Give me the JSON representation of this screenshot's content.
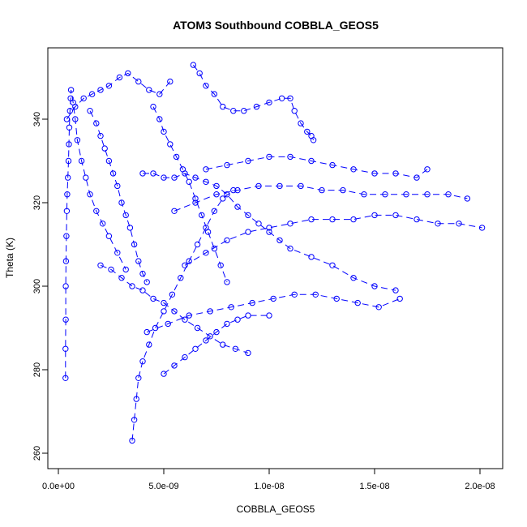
{
  "chart_data": {
    "type": "scatter",
    "title": "ATOM3 Southbound COBBLA_GEOS5",
    "xlabel": "COBBLA_GEOS5",
    "ylabel": "Theta (K)",
    "xlim": [
      -0.0,
      2.05e-08
    ],
    "ylim": [
      258,
      358
    ],
    "x_ticks": [
      0,
      5e-09,
      1e-08,
      1.5e-08,
      2e-08
    ],
    "x_tick_labels": [
      "0.0e+00",
      "5.0e-09",
      "1.0e-08",
      "1.5e-08",
      "2.0e-08"
    ],
    "y_ticks": [
      260,
      280,
      300,
      320,
      340
    ],
    "y_tick_labels": [
      "260",
      "280",
      "300",
      "320",
      "340"
    ],
    "marker": "open-circle",
    "line_style": "dashed",
    "grid": false,
    "legend": "none",
    "color": "#0000ff",
    "series": [
      {
        "points": [
          [
            3.4e-10,
            278
          ],
          [
            3.4e-10,
            285
          ],
          [
            3.5e-10,
            292
          ],
          [
            3.5e-10,
            300
          ],
          [
            3.6e-10,
            306
          ],
          [
            3.8e-10,
            312
          ],
          [
            4e-10,
            318
          ],
          [
            4.2e-10,
            322
          ],
          [
            4.5e-10,
            326
          ],
          [
            4.8e-10,
            330
          ],
          [
            5e-10,
            334
          ],
          [
            5.2e-10,
            338
          ],
          [
            5.5e-10,
            342
          ],
          [
            5.8e-10,
            345
          ],
          [
            6e-10,
            347
          ],
          [
            7e-10,
            344
          ],
          [
            8e-10,
            340
          ],
          [
            9e-10,
            335
          ],
          [
            1.1e-09,
            330
          ],
          [
            1.3e-09,
            326
          ],
          [
            1.5e-09,
            322
          ],
          [
            1.8e-09,
            318
          ],
          [
            2.1e-09,
            315
          ],
          [
            2.4e-09,
            312
          ],
          [
            2.8e-09,
            308
          ],
          [
            3.2e-09,
            304
          ]
        ]
      },
      {
        "points": [
          [
            4e-10,
            340
          ],
          [
            8e-10,
            343
          ],
          [
            1.2e-09,
            345
          ],
          [
            1.6e-09,
            346
          ],
          [
            2e-09,
            347
          ],
          [
            2.4e-09,
            348
          ],
          [
            2.9e-09,
            350
          ],
          [
            3.3e-09,
            351
          ],
          [
            3.8e-09,
            349
          ],
          [
            4.3e-09,
            347
          ],
          [
            4.8e-09,
            346
          ],
          [
            5.3e-09,
            349
          ]
        ]
      },
      {
        "points": [
          [
            3.5e-09,
            263
          ],
          [
            3.6e-09,
            268
          ],
          [
            3.7e-09,
            273
          ],
          [
            3.8e-09,
            278
          ],
          [
            4e-09,
            282
          ],
          [
            4.3e-09,
            286
          ],
          [
            4.6e-09,
            290
          ],
          [
            5e-09,
            294
          ],
          [
            5.4e-09,
            298
          ],
          [
            5.8e-09,
            302
          ],
          [
            6.2e-09,
            306
          ],
          [
            6.6e-09,
            310
          ],
          [
            7e-09,
            314
          ],
          [
            7.4e-09,
            318
          ],
          [
            7.8e-09,
            321
          ],
          [
            8.3e-09,
            323
          ]
        ]
      },
      {
        "points": [
          [
            4.2e-09,
            289
          ],
          [
            5.2e-09,
            291
          ],
          [
            6.2e-09,
            293
          ],
          [
            7.2e-09,
            294
          ],
          [
            8.2e-09,
            295
          ],
          [
            9.2e-09,
            296
          ],
          [
            1.02e-08,
            297
          ],
          [
            1.12e-08,
            298
          ],
          [
            1.22e-08,
            298
          ],
          [
            1.32e-08,
            297
          ],
          [
            1.42e-08,
            296
          ],
          [
            1.52e-08,
            295
          ],
          [
            1.62e-08,
            297
          ]
        ]
      },
      {
        "points": [
          [
            6e-09,
            305
          ],
          [
            7e-09,
            308
          ],
          [
            8e-09,
            311
          ],
          [
            9e-09,
            313
          ],
          [
            1e-08,
            314
          ],
          [
            1.1e-08,
            315
          ],
          [
            1.2e-08,
            316
          ],
          [
            1.3e-08,
            316
          ],
          [
            1.4e-08,
            316
          ],
          [
            1.5e-08,
            317
          ],
          [
            1.6e-08,
            317
          ],
          [
            1.7e-08,
            316
          ],
          [
            1.8e-08,
            315
          ],
          [
            1.9e-08,
            315
          ],
          [
            2.01e-08,
            314
          ]
        ]
      },
      {
        "points": [
          [
            5.5e-09,
            318
          ],
          [
            6.5e-09,
            320
          ],
          [
            7.5e-09,
            322
          ],
          [
            8.5e-09,
            323
          ],
          [
            9.5e-09,
            324
          ],
          [
            1.05e-08,
            324
          ],
          [
            1.15e-08,
            324
          ],
          [
            1.25e-08,
            323
          ],
          [
            1.35e-08,
            323
          ],
          [
            1.45e-08,
            322
          ],
          [
            1.55e-08,
            322
          ],
          [
            1.65e-08,
            322
          ],
          [
            1.75e-08,
            322
          ],
          [
            1.85e-08,
            322
          ],
          [
            1.94e-08,
            321
          ]
        ]
      },
      {
        "points": [
          [
            7e-09,
            328
          ],
          [
            8e-09,
            329
          ],
          [
            9e-09,
            330
          ],
          [
            1e-08,
            331
          ],
          [
            1.1e-08,
            331
          ],
          [
            1.2e-08,
            330
          ],
          [
            1.3e-08,
            329
          ],
          [
            1.4e-08,
            328
          ],
          [
            1.5e-08,
            327
          ],
          [
            1.6e-08,
            327
          ],
          [
            1.7e-08,
            326
          ],
          [
            1.75e-08,
            328
          ]
        ]
      },
      {
        "points": [
          [
            6.4e-09,
            353
          ],
          [
            6.7e-09,
            351
          ],
          [
            7e-09,
            348
          ],
          [
            7.4e-09,
            346
          ],
          [
            7.8e-09,
            343
          ],
          [
            8.3e-09,
            342
          ],
          [
            8.8e-09,
            342
          ],
          [
            9.4e-09,
            343
          ],
          [
            1e-08,
            344
          ],
          [
            1.06e-08,
            345
          ],
          [
            1.1e-08,
            345
          ],
          [
            1.12e-08,
            342
          ],
          [
            1.15e-08,
            339
          ],
          [
            1.18e-08,
            337
          ],
          [
            1.2e-08,
            336
          ],
          [
            1.21e-08,
            335
          ]
        ]
      },
      {
        "points": [
          [
            2e-09,
            305
          ],
          [
            2.5e-09,
            304
          ],
          [
            3e-09,
            302
          ],
          [
            3.5e-09,
            300
          ],
          [
            4e-09,
            299
          ],
          [
            4.5e-09,
            297
          ],
          [
            5e-09,
            296
          ],
          [
            5.5e-09,
            294
          ],
          [
            6e-09,
            292
          ],
          [
            6.6e-09,
            290
          ],
          [
            7.2e-09,
            288
          ],
          [
            7.8e-09,
            286
          ],
          [
            8.4e-09,
            285
          ],
          [
            9e-09,
            284
          ]
        ]
      },
      {
        "points": [
          [
            4e-09,
            327
          ],
          [
            4.5e-09,
            327
          ],
          [
            5e-09,
            326
          ],
          [
            5.5e-09,
            326
          ],
          [
            6e-09,
            327
          ],
          [
            6.5e-09,
            326
          ],
          [
            7e-09,
            325
          ],
          [
            7.5e-09,
            324
          ],
          [
            8e-09,
            322
          ],
          [
            8.5e-09,
            319
          ],
          [
            9e-09,
            317
          ],
          [
            9.5e-09,
            315
          ],
          [
            1e-08,
            313
          ],
          [
            1.05e-08,
            311
          ],
          [
            1.1e-08,
            309
          ],
          [
            1.2e-08,
            307
          ],
          [
            1.3e-08,
            305
          ],
          [
            1.4e-08,
            302
          ],
          [
            1.5e-08,
            300
          ],
          [
            1.6e-08,
            299
          ]
        ]
      },
      {
        "points": [
          [
            1.5e-09,
            342
          ],
          [
            1.8e-09,
            339
          ],
          [
            2e-09,
            336
          ],
          [
            2.2e-09,
            333
          ],
          [
            2.4e-09,
            330
          ],
          [
            2.6e-09,
            327
          ],
          [
            2.8e-09,
            324
          ],
          [
            3e-09,
            320
          ],
          [
            3.2e-09,
            317
          ],
          [
            3.4e-09,
            314
          ],
          [
            3.6e-09,
            310
          ],
          [
            3.8e-09,
            306
          ],
          [
            4e-09,
            303
          ],
          [
            4.2e-09,
            301
          ]
        ]
      },
      {
        "points": [
          [
            4.5e-09,
            343
          ],
          [
            4.8e-09,
            340
          ],
          [
            5e-09,
            337
          ],
          [
            5.3e-09,
            334
          ],
          [
            5.6e-09,
            331
          ],
          [
            5.9e-09,
            328
          ],
          [
            6.2e-09,
            325
          ],
          [
            6.5e-09,
            321
          ],
          [
            6.8e-09,
            317
          ],
          [
            7.1e-09,
            313
          ],
          [
            7.4e-09,
            309
          ],
          [
            7.7e-09,
            305
          ],
          [
            8e-09,
            301
          ]
        ]
      },
      {
        "points": [
          [
            5e-09,
            279
          ],
          [
            5.5e-09,
            281
          ],
          [
            6e-09,
            283
          ],
          [
            6.5e-09,
            285
          ],
          [
            7e-09,
            287
          ],
          [
            7.5e-09,
            289
          ],
          [
            8e-09,
            291
          ],
          [
            8.5e-09,
            292
          ],
          [
            9e-09,
            293
          ],
          [
            1e-08,
            293
          ]
        ]
      }
    ]
  }
}
